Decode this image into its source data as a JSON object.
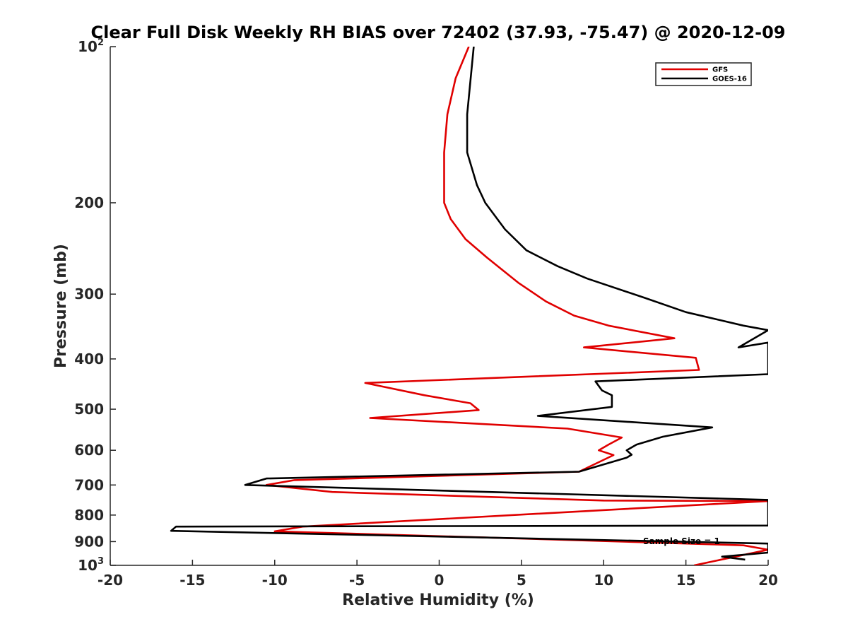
{
  "chart_data": {
    "type": "line",
    "title": "Clear Full Disk Weekly RH BIAS over 72402 (37.93, -75.47) @ 2020-12-09",
    "xlabel": "Relative Humidity (%)",
    "ylabel": "Pressure (mb)",
    "xlim": [
      -20,
      20
    ],
    "ylim": [
      100,
      1000
    ],
    "yscale": "log",
    "yreversed": true,
    "grid": false,
    "legend_position": "top-right",
    "x_ticks": [
      "-20",
      "-15",
      "-10",
      "-5",
      "0",
      "5",
      "10",
      "15",
      "20"
    ],
    "y_ticks": [
      {
        "value": 100,
        "base": "10",
        "exp": "2"
      },
      {
        "value": 200,
        "label": "200"
      },
      {
        "value": 300,
        "label": "300"
      },
      {
        "value": 400,
        "label": "400"
      },
      {
        "value": 500,
        "label": "500"
      },
      {
        "value": 600,
        "label": "600"
      },
      {
        "value": 700,
        "label": "700"
      },
      {
        "value": 800,
        "label": "800"
      },
      {
        "value": 900,
        "label": "900"
      },
      {
        "value": 1000,
        "base": "10",
        "exp": "3"
      }
    ],
    "annotation": "Sample Size = 1",
    "series": [
      {
        "name": "GFS",
        "color": "#e00000",
        "points": [
          [
            1.8,
            100
          ],
          [
            1.0,
            115
          ],
          [
            0.5,
            135
          ],
          [
            0.3,
            160
          ],
          [
            0.3,
            200
          ],
          [
            0.7,
            215
          ],
          [
            1.6,
            235
          ],
          [
            2.9,
            255
          ],
          [
            4.8,
            285
          ],
          [
            6.5,
            310
          ],
          [
            8.2,
            330
          ],
          [
            10.3,
            345
          ],
          [
            14.3,
            365
          ],
          [
            8.8,
            380
          ],
          [
            15.6,
            398
          ],
          [
            15.8,
            420
          ],
          [
            -4.5,
            445
          ],
          [
            -0.9,
            470
          ],
          [
            1.9,
            487
          ],
          [
            2.4,
            502
          ],
          [
            -4.2,
            520
          ],
          [
            7.8,
            545
          ],
          [
            11.1,
            567
          ],
          [
            10.3,
            585
          ],
          [
            9.7,
            600
          ],
          [
            10.6,
            613
          ],
          [
            8.5,
            660
          ],
          [
            -8.8,
            685
          ],
          [
            -10.5,
            700
          ],
          [
            -6.5,
            722
          ],
          [
            10.0,
            750
          ],
          [
            20.0,
            752
          ],
          [
            -8.3,
            842
          ],
          [
            -10.0,
            860
          ],
          [
            5.0,
            888
          ],
          [
            18.5,
            915
          ],
          [
            20.0,
            933
          ],
          [
            15.5,
            1000
          ]
        ]
      },
      {
        "name": "GOES-16",
        "color": "#000000",
        "points": [
          [
            2.1,
            100
          ],
          [
            1.7,
            135
          ],
          [
            1.7,
            160
          ],
          [
            2.3,
            185
          ],
          [
            2.8,
            200
          ],
          [
            4.0,
            225
          ],
          [
            5.3,
            247
          ],
          [
            7.2,
            265
          ],
          [
            9.0,
            280
          ],
          [
            12.5,
            305
          ],
          [
            15.0,
            325
          ],
          [
            18.5,
            345
          ],
          [
            20.0,
            352
          ],
          [
            18.2,
            380
          ],
          [
            20.0,
            372
          ],
          [
            20.0,
            388
          ],
          [
            20.0,
            428
          ],
          [
            9.5,
            442
          ],
          [
            9.9,
            460
          ],
          [
            10.5,
            470
          ],
          [
            10.5,
            495
          ],
          [
            6.0,
            515
          ],
          [
            16.6,
            542
          ],
          [
            13.6,
            565
          ],
          [
            12.0,
            585
          ],
          [
            11.4,
            600
          ],
          [
            11.7,
            612
          ],
          [
            11.4,
            620
          ],
          [
            8.5,
            660
          ],
          [
            -10.5,
            680
          ],
          [
            -11.8,
            700
          ],
          [
            20.0,
            748
          ],
          [
            20.0,
            838
          ],
          [
            -16.0,
            842
          ],
          [
            -16.3,
            858
          ],
          [
            20.0,
            908
          ],
          [
            20.0,
            945
          ],
          [
            17.2,
            962
          ],
          [
            18.6,
            975
          ]
        ]
      }
    ]
  }
}
